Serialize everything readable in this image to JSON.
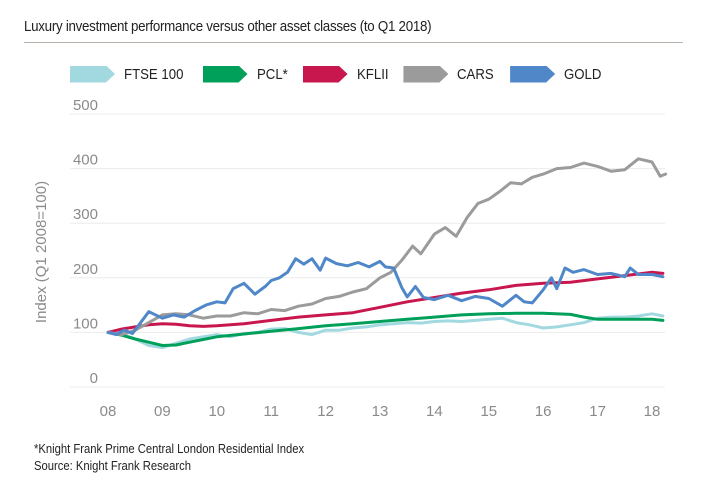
{
  "title": "Luxury investment performance versus other asset classes (to Q1 2018)",
  "footnote": "*Knight Frank Prime Central London Residential Index",
  "source": "Source:  Knight Frank Research",
  "chart_data": {
    "type": "line",
    "title": "Luxury investment performance versus other asset classes (to Q1 2018)",
    "xlabel": "",
    "ylabel": "Index (Q1 2008=100)",
    "ylim": [
      0,
      500
    ],
    "xlim": [
      2008,
      2018.3
    ],
    "yticks": [
      0,
      100,
      200,
      300,
      400,
      500
    ],
    "xticks": [
      2008,
      2009,
      2010,
      2011,
      2012,
      2013,
      2014,
      2015,
      2016,
      2017,
      2018
    ],
    "xtick_labels": [
      "08",
      "09",
      "10",
      "11",
      "12",
      "13",
      "14",
      "15",
      "16",
      "17",
      "18"
    ],
    "grid": "horizontal",
    "legend": "top",
    "series": [
      {
        "name": "FTSE 100",
        "color": "#a2d9e0",
        "x": [
          2008,
          2008.25,
          2008.5,
          2008.75,
          2009,
          2009.25,
          2009.5,
          2009.75,
          2010,
          2010.25,
          2010.5,
          2010.75,
          2011,
          2011.25,
          2011.5,
          2011.75,
          2012,
          2012.25,
          2012.5,
          2012.75,
          2013,
          2013.25,
          2013.5,
          2013.75,
          2014,
          2014.25,
          2014.5,
          2014.75,
          2015,
          2015.25,
          2015.5,
          2015.75,
          2016,
          2016.25,
          2016.5,
          2016.75,
          2017,
          2017.25,
          2017.5,
          2017.75,
          2018,
          2018.2
        ],
        "values": [
          100,
          98,
          88,
          76,
          72,
          80,
          88,
          92,
          96,
          92,
          98,
          100,
          106,
          107,
          100,
          96,
          104,
          104,
          108,
          110,
          114,
          116,
          118,
          117,
          120,
          121,
          120,
          122,
          124,
          126,
          118,
          114,
          108,
          110,
          114,
          118,
          126,
          128,
          128,
          130,
          134,
          130
        ]
      },
      {
        "name": "PCL*",
        "color": "#00a05a",
        "x": [
          2008,
          2008.25,
          2008.5,
          2008.75,
          2009,
          2009.25,
          2009.5,
          2009.75,
          2010,
          2010.5,
          2011,
          2011.5,
          2012,
          2012.5,
          2013,
          2013.5,
          2014,
          2014.5,
          2015,
          2015.5,
          2016,
          2016.5,
          2016.75,
          2017,
          2017.5,
          2018,
          2018.2
        ],
        "values": [
          100,
          95,
          88,
          82,
          76,
          77,
          82,
          87,
          92,
          97,
          102,
          107,
          112,
          116,
          120,
          124,
          128,
          132,
          134,
          135,
          135,
          133,
          128,
          124,
          124,
          124,
          122
        ]
      },
      {
        "name": "KFLII",
        "color": "#c8174f",
        "x": [
          2008,
          2008.25,
          2008.5,
          2008.75,
          2009,
          2009.25,
          2009.5,
          2009.75,
          2010,
          2010.5,
          2011,
          2011.5,
          2012,
          2012.5,
          2013,
          2013.5,
          2014,
          2014.5,
          2015,
          2015.5,
          2016,
          2016.5,
          2017,
          2017.5,
          2018,
          2018.2
        ],
        "values": [
          100,
          106,
          110,
          114,
          116,
          115,
          112,
          111,
          112,
          116,
          122,
          128,
          132,
          136,
          146,
          156,
          164,
          172,
          178,
          186,
          190,
          192,
          198,
          204,
          210,
          208
        ]
      },
      {
        "name": "CARS",
        "color": "#9b9b9b",
        "x": [
          2008,
          2008.25,
          2008.5,
          2008.75,
          2009,
          2009.25,
          2009.5,
          2009.75,
          2010,
          2010.25,
          2010.5,
          2010.75,
          2011,
          2011.25,
          2011.5,
          2011.75,
          2012,
          2012.25,
          2012.5,
          2012.75,
          2013,
          2013.2,
          2013.4,
          2013.6,
          2013.75,
          2014,
          2014.2,
          2014.4,
          2014.6,
          2014.8,
          2015,
          2015.2,
          2015.4,
          2015.6,
          2015.8,
          2016,
          2016.25,
          2016.5,
          2016.75,
          2017,
          2017.25,
          2017.5,
          2017.75,
          2018,
          2018.15,
          2018.25
        ],
        "values": [
          100,
          96,
          104,
          118,
          132,
          134,
          132,
          126,
          130,
          130,
          136,
          134,
          142,
          140,
          148,
          152,
          162,
          166,
          174,
          180,
          200,
          210,
          232,
          258,
          244,
          280,
          292,
          276,
          310,
          336,
          344,
          358,
          374,
          372,
          384,
          390,
          400,
          402,
          410,
          404,
          395,
          398,
          418,
          412,
          386,
          390
        ]
      },
      {
        "name": "GOLD",
        "color": "#4f87c8",
        "x": [
          2008,
          2008.15,
          2008.3,
          2008.45,
          2008.6,
          2008.75,
          2009,
          2009.2,
          2009.4,
          2009.6,
          2009.8,
          2010,
          2010.15,
          2010.3,
          2010.5,
          2010.7,
          2010.9,
          2011,
          2011.15,
          2011.3,
          2011.45,
          2011.6,
          2011.75,
          2011.9,
          2012,
          2012.2,
          2012.4,
          2012.6,
          2012.8,
          2013,
          2013.1,
          2013.25,
          2013.4,
          2013.5,
          2013.65,
          2013.8,
          2014,
          2014.25,
          2014.5,
          2014.75,
          2015,
          2015.25,
          2015.5,
          2015.65,
          2015.8,
          2016,
          2016.15,
          2016.25,
          2016.4,
          2016.55,
          2016.75,
          2017,
          2017.25,
          2017.5,
          2017.6,
          2017.75,
          2018,
          2018.2
        ],
        "values": [
          100,
          96,
          104,
          98,
          118,
          138,
          126,
          132,
          128,
          140,
          150,
          156,
          154,
          180,
          190,
          170,
          185,
          195,
          200,
          210,
          235,
          225,
          235,
          214,
          236,
          226,
          222,
          228,
          220,
          230,
          220,
          218,
          182,
          165,
          184,
          164,
          160,
          168,
          158,
          166,
          162,
          148,
          168,
          156,
          154,
          178,
          200,
          180,
          218,
          210,
          215,
          206,
          208,
          202,
          218,
          206,
          206,
          202
        ]
      }
    ]
  }
}
